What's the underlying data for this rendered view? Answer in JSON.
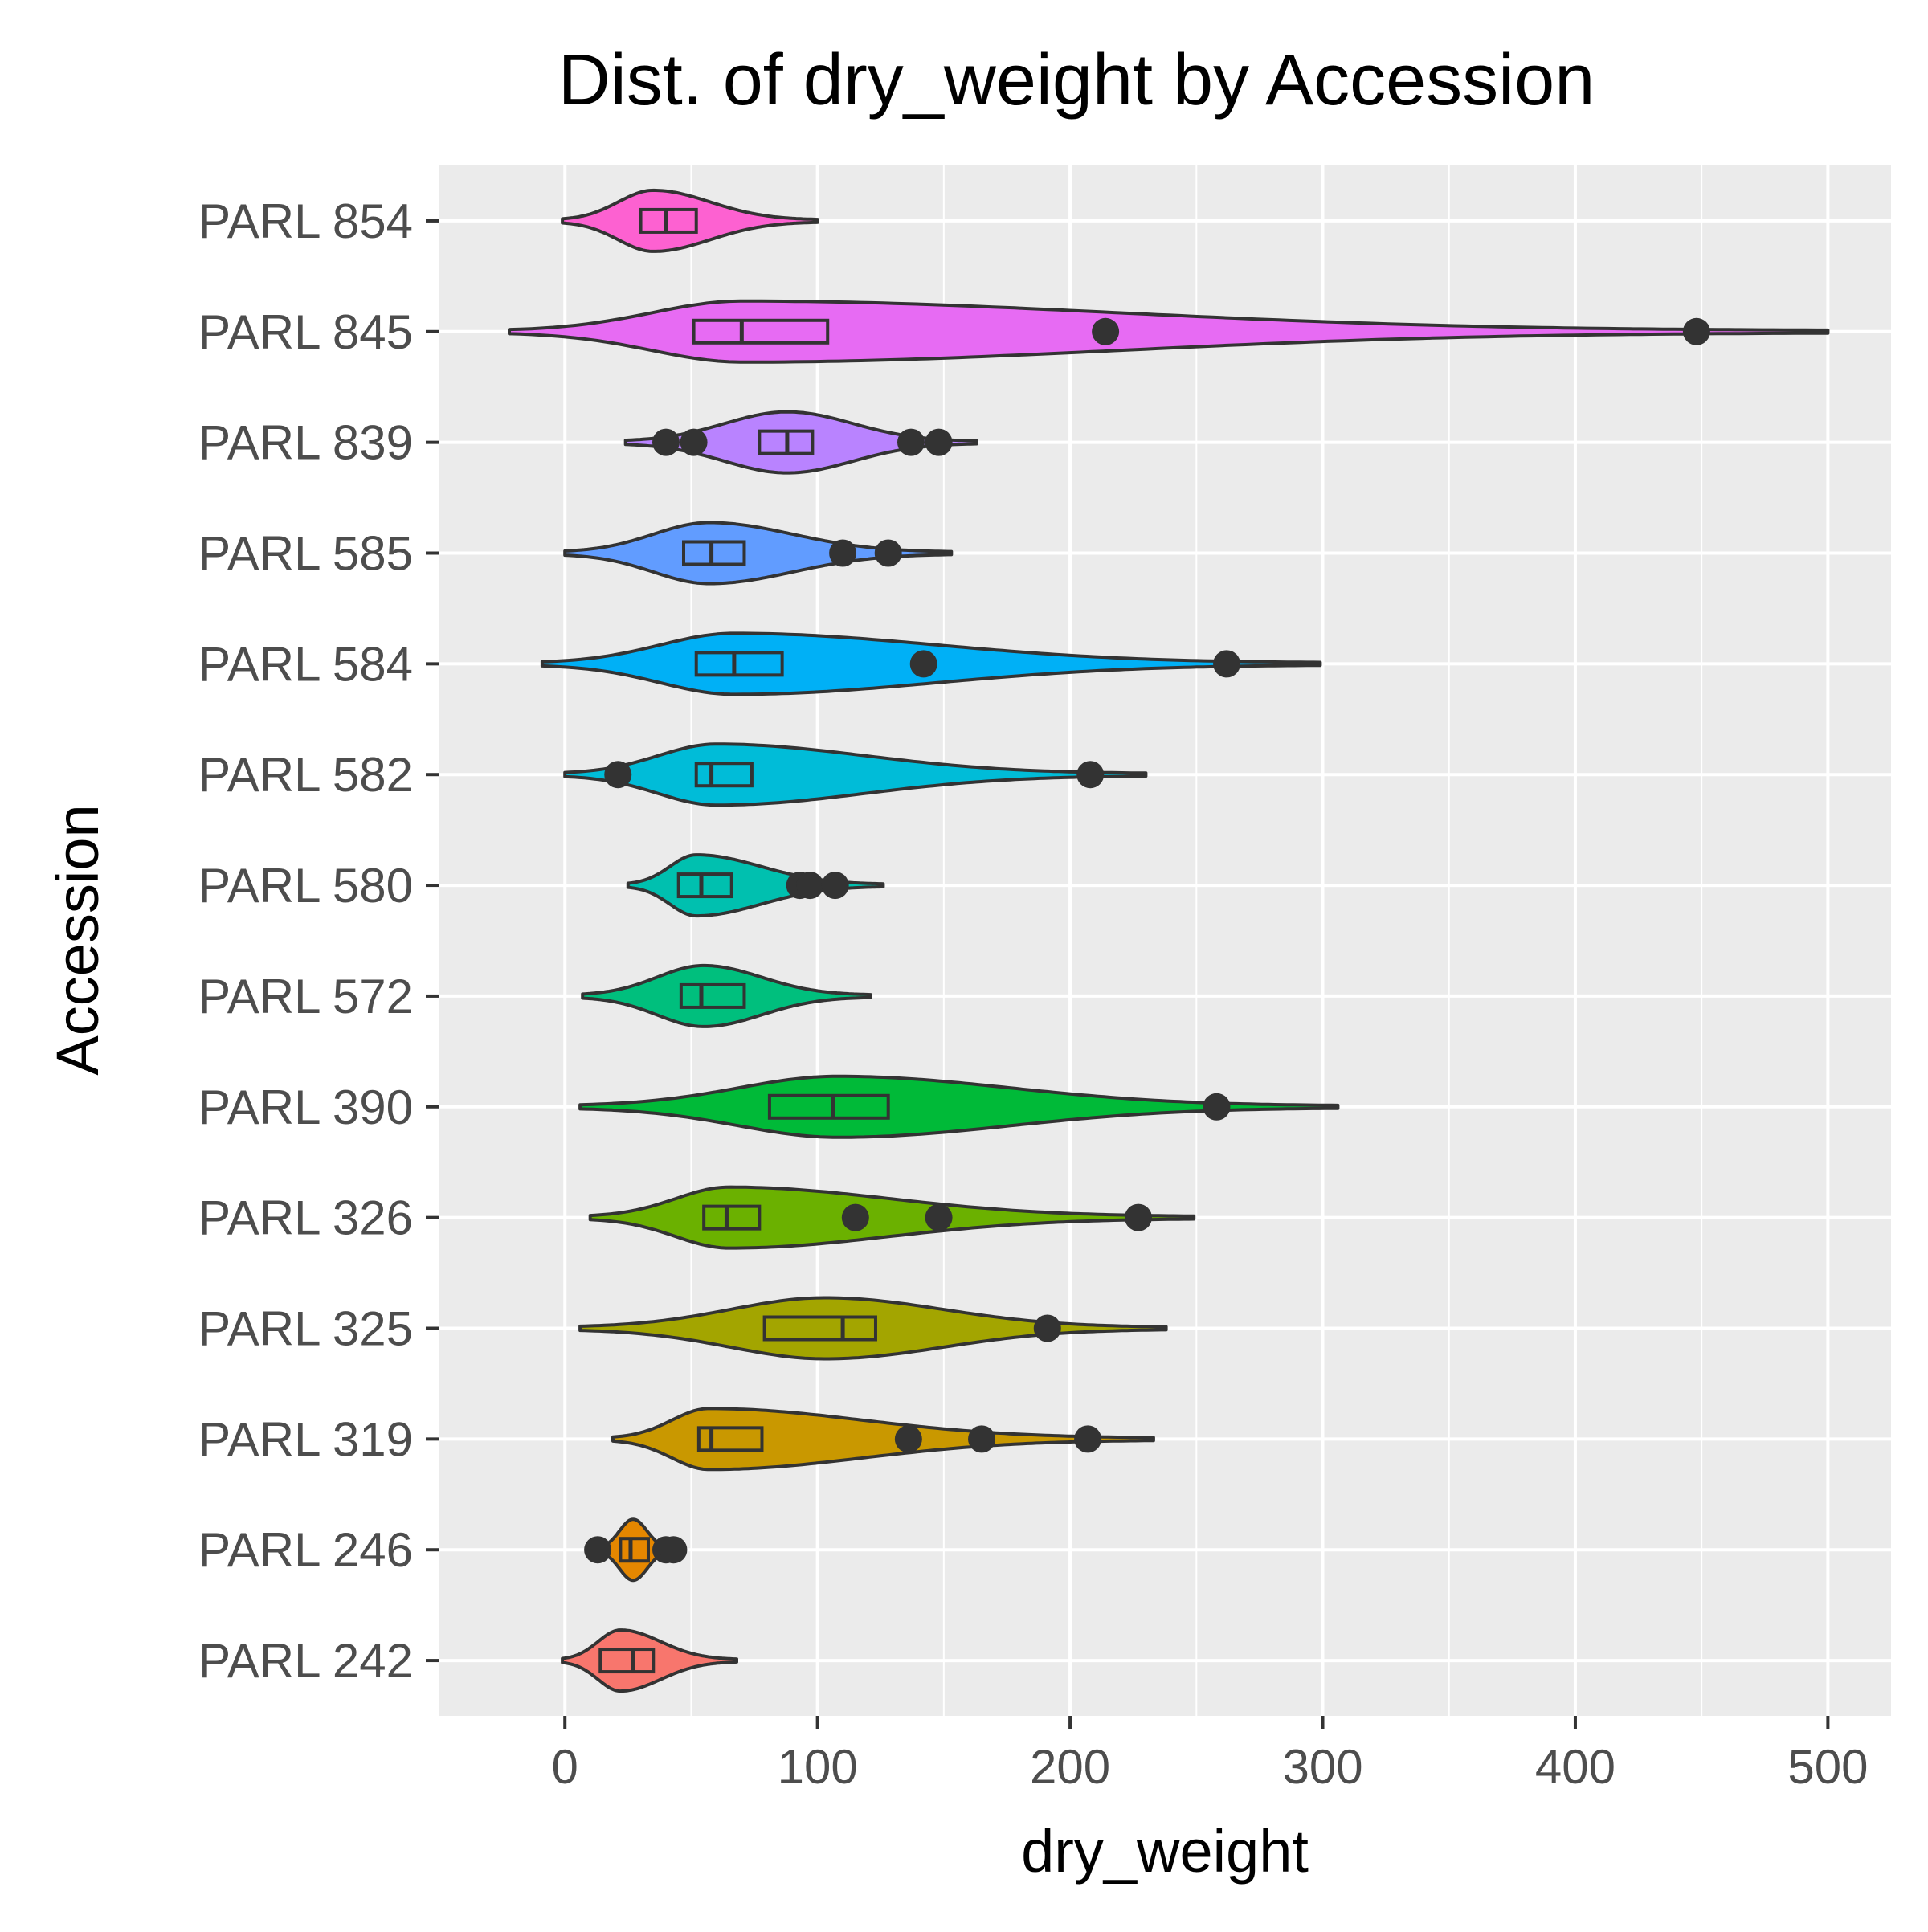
{
  "chart_data": {
    "type": "violin",
    "title": "Dist. of dry_weight by Accession",
    "xlabel": "dry_weight",
    "ylabel": "Accession",
    "xlim": [
      -50,
      525
    ],
    "xticks": [
      0,
      100,
      200,
      300,
      400,
      500
    ],
    "xtick_labels": [
      "0",
      "100",
      "200",
      "300",
      "400",
      "500"
    ],
    "grid": true,
    "legend": "none",
    "orientation": "horizontal",
    "categories": [
      "PARL 242",
      "PARL 246",
      "PARL 319",
      "PARL 325",
      "PARL 326",
      "PARL 390",
      "PARL 572",
      "PARL 580",
      "PARL 582",
      "PARL 584",
      "PARL 585",
      "PARL 839",
      "PARL 845",
      "PARL 854"
    ],
    "series": [
      {
        "category": "PARL 242",
        "color": "#f8766d",
        "min": -1,
        "max": 68,
        "mode": 22,
        "q1": 14,
        "median": 27,
        "q3": 35,
        "outliers": []
      },
      {
        "category": "PARL 246",
        "color": "#e58700",
        "min": 13,
        "max": 43,
        "mode": 27,
        "q1": 22,
        "median": 26,
        "q3": 33,
        "outliers": [
          13,
          40,
          43
        ]
      },
      {
        "category": "PARL 319",
        "color": "#c99800",
        "min": 19,
        "max": 233,
        "mode": 57,
        "q1": 53,
        "median": 58,
        "q3": 78,
        "outliers": [
          136,
          165,
          207
        ]
      },
      {
        "category": "PARL 325",
        "color": "#a3a500",
        "min": 6,
        "max": 238,
        "mode": 103,
        "q1": 79,
        "median": 110,
        "q3": 123,
        "outliers": [
          191
        ]
      },
      {
        "category": "PARL 326",
        "color": "#6bb100",
        "min": 10,
        "max": 249,
        "mode": 65,
        "q1": 55,
        "median": 64,
        "q3": 77,
        "outliers": [
          115,
          148,
          227
        ]
      },
      {
        "category": "PARL 390",
        "color": "#00ba38",
        "min": 6,
        "max": 306,
        "mode": 108,
        "q1": 81,
        "median": 106,
        "q3": 128,
        "outliers": [
          258
        ]
      },
      {
        "category": "PARL 572",
        "color": "#00bf7d",
        "min": 7,
        "max": 121,
        "mode": 55,
        "q1": 46,
        "median": 54,
        "q3": 71,
        "outliers": []
      },
      {
        "category": "PARL 580",
        "color": "#00c0af",
        "min": 25,
        "max": 126,
        "mode": 52,
        "q1": 45,
        "median": 54,
        "q3": 66,
        "outliers": [
          93,
          97,
          107
        ]
      },
      {
        "category": "PARL 582",
        "color": "#00bcd8",
        "min": 0,
        "max": 230,
        "mode": 60,
        "q1": 52,
        "median": 58,
        "q3": 74,
        "outliers": [
          21,
          208
        ]
      },
      {
        "category": "PARL 584",
        "color": "#00b0f6",
        "min": -9,
        "max": 299,
        "mode": 67,
        "q1": 52,
        "median": 67,
        "q3": 86,
        "outliers": [
          142,
          262
        ]
      },
      {
        "category": "PARL 585",
        "color": "#619cff",
        "min": 0,
        "max": 153,
        "mode": 57,
        "q1": 47,
        "median": 58,
        "q3": 71,
        "outliers": [
          110,
          128
        ]
      },
      {
        "category": "PARL 839",
        "color": "#b983ff",
        "min": 24,
        "max": 163,
        "mode": 88,
        "q1": 77,
        "median": 88,
        "q3": 98,
        "outliers": [
          40,
          51,
          137,
          148
        ]
      },
      {
        "category": "PARL 845",
        "color": "#e76bf3",
        "min": -22,
        "max": 500,
        "mode": 70,
        "q1": 51,
        "median": 70,
        "q3": 104,
        "outliers": [
          214,
          448
        ]
      },
      {
        "category": "PARL 854",
        "color": "#fd61d1",
        "min": -1,
        "max": 100,
        "mode": 35,
        "q1": 30,
        "median": 40,
        "q3": 52,
        "outliers": []
      }
    ]
  },
  "colors": {
    "panel": "#ebebeb",
    "grid_major": "#ffffff",
    "outline": "#333333",
    "tick": "#333333"
  }
}
